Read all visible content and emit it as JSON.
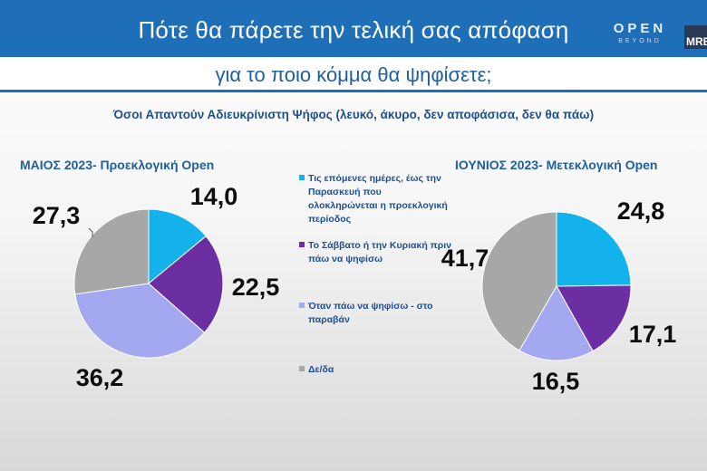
{
  "header": {
    "title_line1": "Πότε θα πάρετε την τελική σας απόφαση",
    "title_line2": "για το ποιο κόμμα θα ψηφίσετε;",
    "logo_open": "OPEN",
    "logo_open_sub": "BEYOND",
    "logo_mrb": "MRB"
  },
  "note": "Όσοι Απαντούν Αδιευκρίνιστη  Ψήφος (λευκό, άκυρο, δεν αποφάσισα, δεν θα πάω)",
  "colors": {
    "header_blue": "#1f6fb8",
    "slice_1": "#13b2ec",
    "slice_2": "#6b2ea3",
    "slice_3": "#a3a8f0",
    "slice_4": "#a7a7a7"
  },
  "legend": [
    {
      "label": "Τις επόμενες ημέρες, έως την Παρασκευή που ολοκληρώνεται η προεκλογική περίοδος",
      "color": "#13b2ec"
    },
    {
      "label": "Το Σάββατο ή την Κυριακή πριν πάω να ψηφίσω",
      "color": "#6b2ea3"
    },
    {
      "label": "Όταν πάω να ψηφίσω - στο παραβάν",
      "color": "#a3a8f0"
    },
    {
      "label": "Δε/δα",
      "color": "#a7a7a7"
    }
  ],
  "chart_data": [
    {
      "type": "pie",
      "title": "ΜΑΙΟΣ 2023- Προεκλογική Open",
      "categories": [
        "Τις επόμενες ημέρες, έως την Παρασκευή που ολοκληρώνεται η προεκλογική περίοδος",
        "Το Σάββατο ή την Κυριακή πριν πάω να ψηφίσω",
        "Όταν πάω να ψηφίσω - στο παραβάν",
        "Δε/δα"
      ],
      "values": [
        14.0,
        22.5,
        36.2,
        27.3
      ],
      "labels": [
        "14,0",
        "22,5",
        "36,2",
        "27,3"
      ]
    },
    {
      "type": "pie",
      "title": "ΙΟΥΝΙΟΣ 2023- Μετεκλογική Open",
      "categories": [
        "Τις επόμενες ημέρες, έως την Παρασκευή που ολοκληρώνεται η προεκλογική περίοδος",
        "Το Σάββατο ή την Κυριακή πριν πάω να ψηφίσω",
        "Όταν πάω να ψηφίσω - στο παραβάν",
        "Δε/δα"
      ],
      "values": [
        24.8,
        17.1,
        16.5,
        41.7
      ],
      "labels": [
        "24,8",
        "17,1",
        "16,5",
        "41,7"
      ]
    }
  ]
}
